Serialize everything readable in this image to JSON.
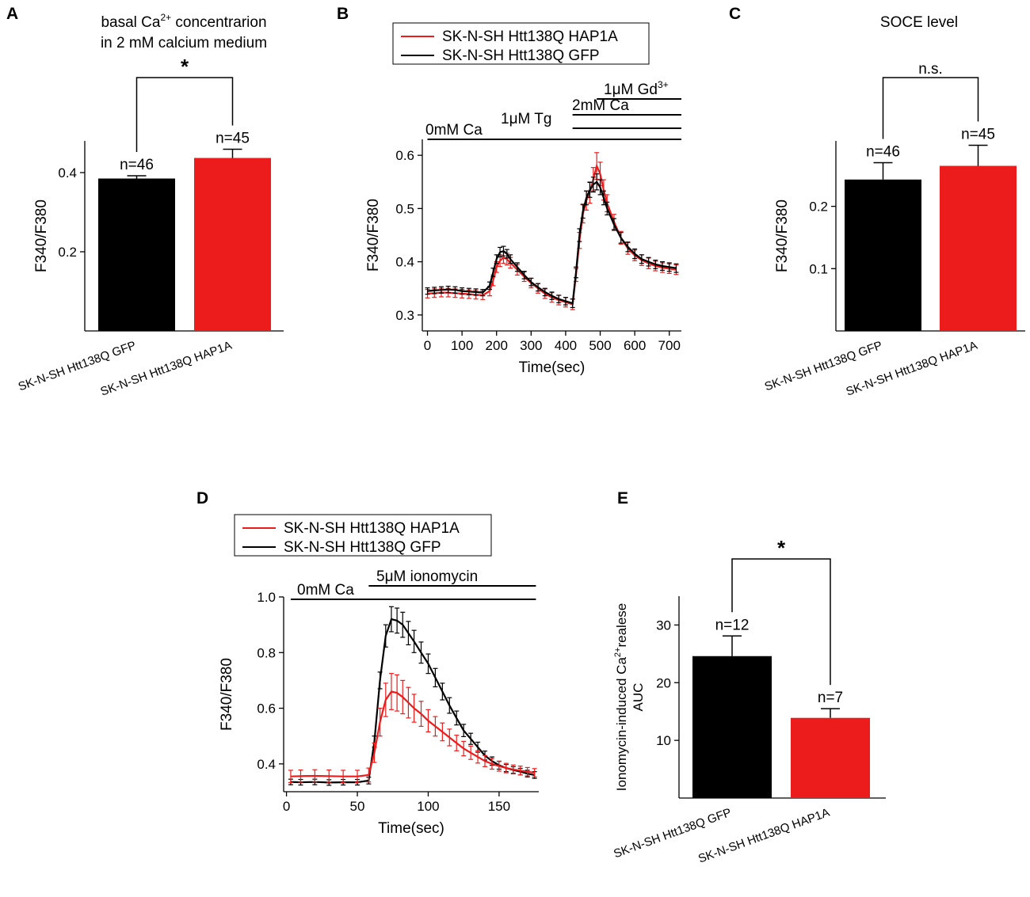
{
  "colors": {
    "black": "#000000",
    "red": "#ed1c1c"
  },
  "panels": {
    "A": {
      "letter": "A"
    },
    "B": {
      "letter": "B"
    },
    "C": {
      "letter": "C"
    },
    "D": {
      "letter": "D"
    },
    "E": {
      "letter": "E"
    }
  },
  "chart_data": [
    {
      "panel": "A",
      "type": "bar",
      "title_line1": "basal Ca",
      "title_sup": "2+",
      "title_line1_rest": " concentrarion",
      "title_line2": "in 2 mM calcium medium",
      "ylabel": "F340/F380",
      "ylim": [
        0,
        0.48
      ],
      "yticks": [
        0.2,
        0.4
      ],
      "ytick_labels": [
        "0.2",
        "0.4"
      ],
      "categories": [
        "SK-N-SH Htt138Q GFP",
        "SK-N-SH Htt138Q HAP1A"
      ],
      "values": [
        0.385,
        0.437
      ],
      "errors": [
        0.007,
        0.022
      ],
      "bar_colors": [
        "#000000",
        "#ed1c1c"
      ],
      "n_labels": [
        "n=46",
        "n=45"
      ],
      "significance": "*"
    },
    {
      "panel": "B",
      "type": "line",
      "legend": [
        "SK-N-SH Htt138Q HAP1A",
        "SK-N-SH Htt138Q GFP"
      ],
      "xlabel": "Time(sec)",
      "ylabel": "F340/F380",
      "xlim": [
        -15,
        735
      ],
      "ylim": [
        0.27,
        0.63
      ],
      "xticks": [
        0,
        100,
        200,
        300,
        400,
        500,
        600,
        700
      ],
      "xtick_labels": [
        "0",
        "100",
        "200",
        "300",
        "400",
        "500",
        "600",
        "700"
      ],
      "yticks": [
        0.3,
        0.4,
        0.5,
        0.6
      ],
      "ytick_labels": [
        "0.3",
        "0.4",
        "0.5",
        "0.6"
      ],
      "treatments": [
        {
          "label": "0mM Ca",
          "start": 0,
          "end": 735
        },
        {
          "label": "1μM Tg",
          "start": 420,
          "end": 735
        },
        {
          "label": "2mM Ca",
          "start": 420,
          "end": 735
        },
        {
          "label": "1μM Gd",
          "sup": "3+",
          "start": 490,
          "end": 735
        }
      ],
      "series": [
        {
          "name": "SK-N-SH Htt138Q GFP",
          "color": "#000000",
          "x": [
            0,
            20,
            40,
            60,
            80,
            100,
            120,
            140,
            160,
            180,
            190,
            200,
            210,
            220,
            230,
            240,
            260,
            280,
            300,
            320,
            340,
            360,
            380,
            400,
            420,
            430,
            440,
            450,
            460,
            470,
            480,
            490,
            500,
            510,
            520,
            540,
            560,
            580,
            600,
            620,
            640,
            660,
            680,
            700,
            720
          ],
          "y": [
            0.345,
            0.346,
            0.347,
            0.348,
            0.347,
            0.345,
            0.344,
            0.343,
            0.342,
            0.355,
            0.38,
            0.405,
            0.418,
            0.42,
            0.415,
            0.405,
            0.39,
            0.375,
            0.362,
            0.352,
            0.343,
            0.336,
            0.33,
            0.326,
            0.322,
            0.38,
            0.45,
            0.495,
            0.52,
            0.535,
            0.545,
            0.55,
            0.54,
            0.52,
            0.5,
            0.47,
            0.445,
            0.428,
            0.415,
            0.405,
            0.4,
            0.395,
            0.392,
            0.39,
            0.388
          ],
          "err": [
            0.006,
            0.006,
            0.006,
            0.006,
            0.006,
            0.006,
            0.006,
            0.006,
            0.006,
            0.007,
            0.008,
            0.008,
            0.009,
            0.009,
            0.008,
            0.008,
            0.008,
            0.007,
            0.007,
            0.007,
            0.007,
            0.007,
            0.007,
            0.007,
            0.008,
            0.01,
            0.012,
            0.013,
            0.013,
            0.014,
            0.014,
            0.015,
            0.014,
            0.013,
            0.012,
            0.011,
            0.01,
            0.009,
            0.009,
            0.008,
            0.008,
            0.008,
            0.008,
            0.008,
            0.008
          ]
        },
        {
          "name": "SK-N-SH Htt138Q HAP1A",
          "color": "#ed1c1c",
          "x": [
            0,
            20,
            40,
            60,
            80,
            100,
            120,
            140,
            160,
            180,
            190,
            200,
            210,
            220,
            230,
            240,
            260,
            280,
            300,
            320,
            340,
            360,
            380,
            400,
            420,
            430,
            440,
            450,
            460,
            470,
            480,
            490,
            500,
            510,
            520,
            540,
            560,
            580,
            600,
            620,
            640,
            660,
            680,
            700,
            720
          ],
          "y": [
            0.34,
            0.341,
            0.342,
            0.342,
            0.341,
            0.34,
            0.339,
            0.338,
            0.337,
            0.345,
            0.365,
            0.39,
            0.402,
            0.408,
            0.405,
            0.398,
            0.385,
            0.372,
            0.36,
            0.35,
            0.34,
            0.333,
            0.328,
            0.324,
            0.32,
            0.375,
            0.44,
            0.49,
            0.515,
            0.53,
            0.555,
            0.58,
            0.565,
            0.535,
            0.51,
            0.475,
            0.445,
            0.425,
            0.412,
            0.403,
            0.397,
            0.392,
            0.389,
            0.387,
            0.385
          ],
          "err": [
            0.008,
            0.008,
            0.008,
            0.008,
            0.008,
            0.008,
            0.008,
            0.008,
            0.008,
            0.009,
            0.01,
            0.01,
            0.011,
            0.011,
            0.011,
            0.01,
            0.01,
            0.009,
            0.009,
            0.009,
            0.009,
            0.009,
            0.009,
            0.009,
            0.01,
            0.012,
            0.015,
            0.017,
            0.018,
            0.02,
            0.022,
            0.025,
            0.022,
            0.019,
            0.016,
            0.014,
            0.012,
            0.011,
            0.01,
            0.01,
            0.01,
            0.009,
            0.009,
            0.009,
            0.009
          ]
        }
      ]
    },
    {
      "panel": "C",
      "type": "bar",
      "title": "SOCE level",
      "ylabel": "F340/F380",
      "ylim": [
        0,
        0.305
      ],
      "yticks": [
        0.1,
        0.2
      ],
      "ytick_labels": [
        "0.1",
        "0.2"
      ],
      "categories": [
        "SK-N-SH Htt138Q GFP",
        "SK-N-SH Htt138Q HAP1A"
      ],
      "values": [
        0.243,
        0.265
      ],
      "errors": [
        0.027,
        0.033
      ],
      "bar_colors": [
        "#000000",
        "#ed1c1c"
      ],
      "n_labels": [
        "n=46",
        "n=45"
      ],
      "significance": "n.s."
    },
    {
      "panel": "D",
      "type": "line",
      "legend": [
        "SK-N-SH Htt138Q HAP1A",
        "SK-N-SH Htt138Q GFP"
      ],
      "xlabel": "Time(sec)",
      "ylabel": "F340/F380",
      "xlim": [
        -2,
        178
      ],
      "ylim": [
        0.3,
        1.0
      ],
      "xticks": [
        0,
        50,
        100,
        150
      ],
      "xtick_labels": [
        "0",
        "50",
        "100",
        "150"
      ],
      "yticks": [
        0.4,
        0.6,
        0.8,
        1.0
      ],
      "ytick_labels": [
        "0.4",
        "0.6",
        "0.8",
        "1.0"
      ],
      "treatments": [
        {
          "label": "0mM Ca",
          "start": 3,
          "end": 176
        },
        {
          "label": "5μM ionomycin",
          "start": 58,
          "end": 176
        }
      ],
      "series": [
        {
          "name": "SK-N-SH Htt138Q GFP",
          "color": "#000000",
          "x": [
            3,
            10,
            20,
            30,
            40,
            50,
            58,
            62,
            66,
            70,
            74,
            78,
            82,
            86,
            90,
            95,
            100,
            105,
            110,
            115,
            120,
            125,
            130,
            135,
            140,
            145,
            150,
            155,
            160,
            165,
            170,
            175
          ],
          "y": [
            0.335,
            0.334,
            0.335,
            0.333,
            0.334,
            0.334,
            0.34,
            0.48,
            0.7,
            0.86,
            0.92,
            0.915,
            0.9,
            0.87,
            0.84,
            0.8,
            0.76,
            0.71,
            0.66,
            0.61,
            0.565,
            0.52,
            0.49,
            0.46,
            0.43,
            0.41,
            0.395,
            0.385,
            0.378,
            0.372,
            0.365,
            0.36
          ],
          "err": [
            0.01,
            0.01,
            0.01,
            0.01,
            0.01,
            0.01,
            0.012,
            0.02,
            0.03,
            0.04,
            0.045,
            0.045,
            0.045,
            0.042,
            0.04,
            0.038,
            0.035,
            0.033,
            0.03,
            0.028,
            0.025,
            0.022,
            0.02,
            0.018,
            0.016,
            0.015,
            0.014,
            0.013,
            0.012,
            0.012,
            0.012,
            0.012
          ]
        },
        {
          "name": "SK-N-SH Htt138Q HAP1A",
          "color": "#ed1c1c",
          "x": [
            3,
            10,
            20,
            30,
            40,
            50,
            58,
            62,
            66,
            70,
            74,
            78,
            82,
            86,
            90,
            95,
            100,
            105,
            110,
            115,
            120,
            125,
            130,
            135,
            140,
            145,
            150,
            155,
            160,
            165,
            170,
            175
          ],
          "y": [
            0.355,
            0.356,
            0.357,
            0.356,
            0.355,
            0.355,
            0.36,
            0.44,
            0.55,
            0.63,
            0.66,
            0.655,
            0.64,
            0.62,
            0.6,
            0.58,
            0.555,
            0.535,
            0.515,
            0.495,
            0.475,
            0.455,
            0.44,
            0.425,
            0.41,
            0.4,
            0.392,
            0.385,
            0.38,
            0.376,
            0.372,
            0.368
          ],
          "err": [
            0.022,
            0.022,
            0.022,
            0.022,
            0.022,
            0.022,
            0.025,
            0.035,
            0.05,
            0.06,
            0.065,
            0.065,
            0.06,
            0.055,
            0.05,
            0.045,
            0.04,
            0.035,
            0.032,
            0.03,
            0.028,
            0.026,
            0.024,
            0.022,
            0.02,
            0.019,
            0.018,
            0.017,
            0.016,
            0.016,
            0.015,
            0.015
          ]
        }
      ]
    },
    {
      "panel": "E",
      "type": "bar",
      "ylabel_line1": "Ionomycin-induced Ca",
      "ylabel_sup": "2+",
      "ylabel_line1_rest": "realese",
      "ylabel_line2": "AUC",
      "ylim": [
        0,
        35
      ],
      "yticks": [
        10,
        20,
        30
      ],
      "ytick_labels": [
        "10",
        "20",
        "30"
      ],
      "categories": [
        "SK-N-SH Htt138Q GFP",
        "SK-N-SH Htt138Q HAP1A"
      ],
      "values": [
        24.6,
        13.9
      ],
      "errors": [
        3.5,
        1.6
      ],
      "bar_colors": [
        "#000000",
        "#ed1c1c"
      ],
      "n_labels": [
        "n=12",
        "n=7"
      ],
      "significance": "*"
    }
  ]
}
